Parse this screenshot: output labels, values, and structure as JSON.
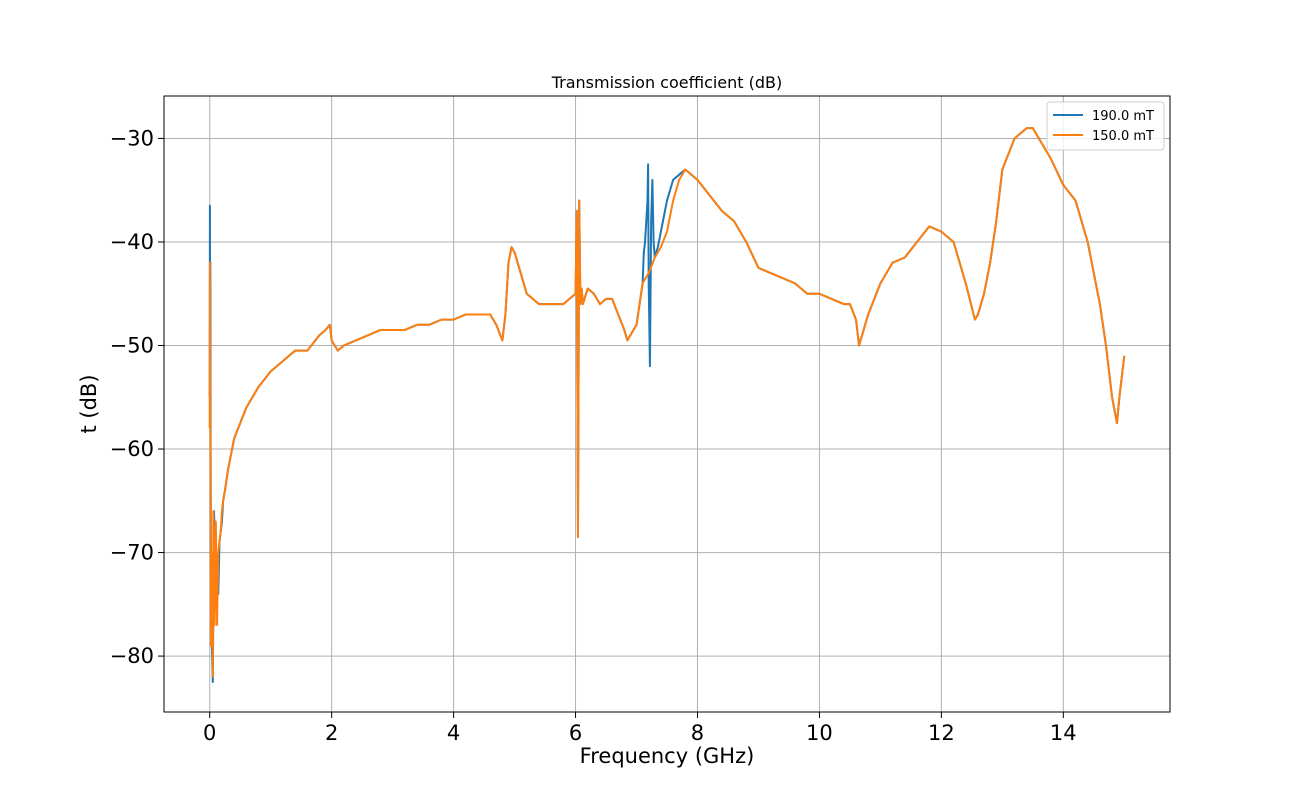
{
  "chart_data": {
    "type": "line",
    "title": "Transmission coefficient (dB)",
    "xlabel": "Frequency (GHz)",
    "ylabel": "t (dB)",
    "xlim": [
      -0.75,
      15.75
    ],
    "ylim": [
      -85.4,
      -25.9
    ],
    "xticks": [
      0,
      2,
      4,
      6,
      8,
      10,
      12,
      14
    ],
    "yticks": [
      -80,
      -70,
      -60,
      -50,
      -40,
      -30
    ],
    "ytick_labels": [
      "−80",
      "−70",
      "−60",
      "−50",
      "−40",
      "−30"
    ],
    "grid": true,
    "legend_position": "top-right",
    "series": [
      {
        "name": "190.0 mT",
        "color": "#1f77b4",
        "x": [
          0.0,
          0.003,
          0.006,
          0.01,
          0.015,
          0.02,
          0.03,
          0.04,
          0.05,
          0.06,
          0.07,
          0.08,
          0.1,
          0.12,
          0.14,
          0.16,
          0.18,
          0.2,
          0.22,
          0.25,
          0.3,
          0.35,
          0.4,
          0.5,
          0.6,
          0.7,
          0.8,
          1.0,
          1.2,
          1.4,
          1.6,
          1.8,
          1.9,
          1.97,
          2.0,
          2.05,
          2.1,
          2.2,
          2.4,
          2.6,
          2.8,
          3.0,
          3.2,
          3.4,
          3.6,
          3.8,
          4.0,
          4.2,
          4.4,
          4.6,
          4.7,
          4.8,
          4.85,
          4.9,
          4.95,
          5.0,
          5.1,
          5.2,
          5.3,
          5.4,
          5.6,
          5.8,
          5.9,
          6.0,
          6.02,
          6.04,
          6.06,
          6.08,
          6.1,
          6.12,
          6.2,
          6.3,
          6.4,
          6.5,
          6.6,
          6.7,
          6.8,
          6.85,
          6.9,
          7.0,
          7.05,
          7.1,
          7.12,
          7.14,
          7.16,
          7.18,
          7.19,
          7.2,
          7.22,
          7.24,
          7.26,
          7.28,
          7.3,
          7.35,
          7.4,
          7.5,
          7.6,
          7.7,
          7.8,
          8.0,
          8.2,
          8.4,
          8.6,
          8.8,
          9.0,
          9.2,
          9.4,
          9.6,
          9.8,
          10.0,
          10.2,
          10.4,
          10.5,
          10.6,
          10.65,
          10.7,
          10.8,
          11.0,
          11.2,
          11.4,
          11.6,
          11.8,
          12.0,
          12.2,
          12.4,
          12.55,
          12.6,
          12.7,
          12.8,
          12.9,
          13.0,
          13.2,
          13.4,
          13.5,
          13.6,
          13.8,
          14.0,
          14.2,
          14.4,
          14.6,
          14.7,
          14.8,
          14.88,
          14.92,
          14.96,
          15.0
        ],
        "y": [
          -55,
          -36.5,
          -48,
          -42,
          -60,
          -72,
          -78,
          -80,
          -82.5,
          -75,
          -66,
          -68,
          -70,
          -71,
          -74,
          -69,
          -68,
          -67,
          -65,
          -64,
          -62,
          -60.5,
          -59,
          -57.5,
          -56,
          -55,
          -54,
          -52.5,
          -51.5,
          -50.5,
          -50.5,
          -49,
          -48.5,
          -48,
          -49.5,
          -50,
          -50.5,
          -50,
          -49.5,
          -49,
          -48.5,
          -48.5,
          -48.5,
          -48,
          -48,
          -47.5,
          -47.5,
          -47,
          -47,
          -47,
          -48,
          -49.5,
          -47,
          -42,
          -40.5,
          -41,
          -43,
          -45,
          -45.5,
          -46,
          -46,
          -46,
          -45.5,
          -45,
          -37,
          -68.5,
          -36,
          -46,
          -44.5,
          -46,
          -44.5,
          -45,
          -46,
          -45.5,
          -45.5,
          -47,
          -48.5,
          -49.5,
          -49,
          -48,
          -46,
          -44,
          -41,
          -40,
          -38,
          -36,
          -32.5,
          -44,
          -52,
          -38,
          -34,
          -40,
          -41.5,
          -40.5,
          -39,
          -36,
          -34,
          -33.5,
          -33,
          -34,
          -35.5,
          -37,
          -38,
          -40,
          -42.5,
          -43,
          -43.5,
          -44,
          -45,
          -45,
          -45.5,
          -46,
          -46,
          -47.5,
          -50,
          -49,
          -47,
          -44,
          -42,
          -41.5,
          -40,
          -38.5,
          -39,
          -40,
          -44,
          -47.5,
          -47,
          -45,
          -42,
          -38,
          -33,
          -30,
          -29,
          -29,
          -30,
          -32,
          -34.5,
          -36,
          -40,
          -46,
          -50,
          -55,
          -57.5,
          -55,
          -53,
          -51
        ]
      },
      {
        "name": "150.0 mT",
        "color": "#ff7f0e",
        "x": [
          0.0,
          0.003,
          0.006,
          0.01,
          0.015,
          0.02,
          0.03,
          0.04,
          0.05,
          0.06,
          0.07,
          0.08,
          0.1,
          0.12,
          0.14,
          0.16,
          0.18,
          0.2,
          0.22,
          0.25,
          0.3,
          0.35,
          0.4,
          0.5,
          0.6,
          0.7,
          0.8,
          1.0,
          1.2,
          1.4,
          1.6,
          1.8,
          1.9,
          1.97,
          2.0,
          2.05,
          2.1,
          2.2,
          2.4,
          2.6,
          2.8,
          3.0,
          3.2,
          3.4,
          3.6,
          3.8,
          4.0,
          4.2,
          4.4,
          4.6,
          4.7,
          4.8,
          4.85,
          4.9,
          4.95,
          5.0,
          5.1,
          5.2,
          5.3,
          5.4,
          5.6,
          5.8,
          5.9,
          6.0,
          6.02,
          6.04,
          6.06,
          6.08,
          6.1,
          6.12,
          6.2,
          6.3,
          6.4,
          6.5,
          6.6,
          6.7,
          6.8,
          6.85,
          6.9,
          7.0,
          7.05,
          7.1,
          7.2,
          7.3,
          7.4,
          7.5,
          7.6,
          7.7,
          7.8,
          8.0,
          8.2,
          8.4,
          8.6,
          8.8,
          9.0,
          9.2,
          9.4,
          9.6,
          9.8,
          10.0,
          10.2,
          10.4,
          10.5,
          10.6,
          10.65,
          10.7,
          10.8,
          11.0,
          11.2,
          11.4,
          11.6,
          11.8,
          12.0,
          12.2,
          12.4,
          12.55,
          12.6,
          12.7,
          12.8,
          12.9,
          13.0,
          13.2,
          13.4,
          13.5,
          13.6,
          13.8,
          14.0,
          14.2,
          14.4,
          14.6,
          14.7,
          14.8,
          14.88,
          14.92,
          14.96,
          15.0
        ],
        "y": [
          -58,
          -42,
          -50,
          -55,
          -65,
          -79,
          -75,
          -70,
          -82,
          -66,
          -72,
          -77,
          -67,
          -77,
          -70,
          -69,
          -68,
          -66,
          -65,
          -64,
          -62,
          -60.5,
          -59,
          -57.5,
          -56,
          -55,
          -54,
          -52.5,
          -51.5,
          -50.5,
          -50.5,
          -49,
          -48.5,
          -48,
          -49.5,
          -50,
          -50.5,
          -50,
          -49.5,
          -49,
          -48.5,
          -48.5,
          -48.5,
          -48,
          -48,
          -47.5,
          -47.5,
          -47,
          -47,
          -47,
          -48,
          -49.5,
          -47,
          -42,
          -40.5,
          -41,
          -43,
          -45,
          -45.5,
          -46,
          -46,
          -46,
          -45.5,
          -45,
          -37,
          -68.5,
          -36,
          -46,
          -44.5,
          -46,
          -44.5,
          -45,
          -46,
          -45.5,
          -45.5,
          -47,
          -48.5,
          -49.5,
          -49,
          -48,
          -46,
          -44,
          -43,
          -41.5,
          -40.5,
          -39,
          -36,
          -34,
          -33,
          -34,
          -35.5,
          -37,
          -38,
          -40,
          -42.5,
          -43,
          -43.5,
          -44,
          -45,
          -45,
          -45.5,
          -46,
          -46,
          -47.5,
          -50,
          -49,
          -47,
          -44,
          -42,
          -41.5,
          -40,
          -38.5,
          -39,
          -40,
          -44,
          -47.5,
          -47,
          -45,
          -42,
          -38,
          -33,
          -30,
          -29,
          -29,
          -30,
          -32,
          -34.5,
          -36,
          -40,
          -46,
          -50,
          -55,
          -57.5,
          -55,
          -53,
          -51
        ]
      }
    ]
  }
}
